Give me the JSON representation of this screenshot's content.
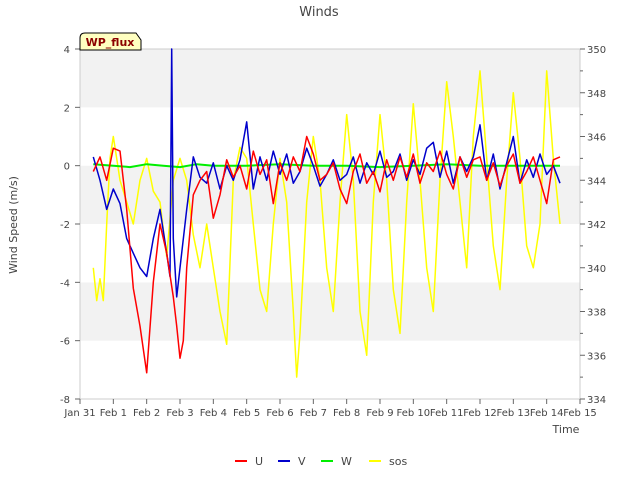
{
  "chart_data": {
    "type": "line",
    "title": "Winds",
    "xlabel": "Time",
    "ylabel": "Wind Speed (m/s)",
    "badge": "WP_flux",
    "x_ticks": [
      "Jan 31",
      "Feb 1",
      "Feb 2",
      "Feb 3",
      "Feb 4",
      "Feb 5",
      "Feb 6",
      "Feb 7",
      "Feb 8",
      "Feb 9",
      "Feb 10",
      "Feb 11",
      "Feb 12",
      "Feb 13",
      "Feb 14",
      "Feb 15"
    ],
    "xlim": [
      0,
      15
    ],
    "ylim": [
      -8,
      4
    ],
    "y_ticks": [
      -8,
      -6,
      -4,
      -2,
      0,
      2,
      4
    ],
    "y2lim": [
      334,
      350
    ],
    "y2_ticks": [
      334,
      336,
      338,
      340,
      342,
      344,
      346,
      348,
      350
    ],
    "grid": "alternating horizontal bands",
    "legend_position": "bottom-center",
    "series": [
      {
        "name": "U",
        "color": "#ff0000",
        "axis": "left",
        "x": [
          0.4,
          0.6,
          0.8,
          1.0,
          1.2,
          1.4,
          1.6,
          1.8,
          2.0,
          2.2,
          2.4,
          2.6,
          2.8,
          2.9,
          3.0,
          3.1,
          3.2,
          3.4,
          3.6,
          3.8,
          4.0,
          4.2,
          4.4,
          4.6,
          4.8,
          5.0,
          5.2,
          5.4,
          5.6,
          5.8,
          6.0,
          6.2,
          6.4,
          6.6,
          6.8,
          7.0,
          7.2,
          7.4,
          7.6,
          7.8,
          8.0,
          8.2,
          8.4,
          8.6,
          8.8,
          9.0,
          9.2,
          9.4,
          9.6,
          9.8,
          10.0,
          10.2,
          10.4,
          10.6,
          10.8,
          11.0,
          11.2,
          11.4,
          11.6,
          11.8,
          12.0,
          12.2,
          12.4,
          12.6,
          12.8,
          13.0,
          13.2,
          13.4,
          13.6,
          13.8,
          14.0,
          14.2,
          14.4
        ],
        "y": [
          -0.2,
          0.3,
          -0.5,
          0.6,
          0.5,
          -1.5,
          -4.2,
          -5.5,
          -7.1,
          -4.0,
          -2.0,
          -3.0,
          -4.5,
          -5.5,
          -6.6,
          -6.0,
          -3.5,
          -1.0,
          -0.5,
          -0.2,
          -1.8,
          -1.0,
          0.2,
          -0.4,
          0.0,
          -0.8,
          0.5,
          -0.3,
          0.2,
          -1.3,
          0.1,
          -0.5,
          0.3,
          -0.2,
          1.0,
          0.4,
          -0.5,
          -0.3,
          0.1,
          -0.8,
          -1.3,
          -0.2,
          0.4,
          -0.6,
          -0.2,
          -0.9,
          0.2,
          -0.5,
          0.3,
          -0.4,
          0.4,
          -0.6,
          0.1,
          -0.2,
          0.5,
          -0.3,
          -0.8,
          0.3,
          -0.4,
          0.2,
          0.3,
          -0.5,
          0.1,
          -0.7,
          0.0,
          0.4,
          -0.6,
          -0.2,
          0.3,
          -0.5,
          -1.3,
          0.2,
          0.3
        ]
      },
      {
        "name": "V",
        "color": "#0000cc",
        "axis": "left",
        "x": [
          0.4,
          0.6,
          0.8,
          1.0,
          1.2,
          1.4,
          1.6,
          1.8,
          2.0,
          2.2,
          2.4,
          2.6,
          2.7,
          2.75,
          2.8,
          2.9,
          3.0,
          3.2,
          3.4,
          3.6,
          3.8,
          4.0,
          4.2,
          4.4,
          4.6,
          4.8,
          5.0,
          5.2,
          5.4,
          5.6,
          5.8,
          6.0,
          6.2,
          6.4,
          6.6,
          6.8,
          7.0,
          7.2,
          7.4,
          7.6,
          7.8,
          8.0,
          8.2,
          8.4,
          8.6,
          8.8,
          9.0,
          9.2,
          9.4,
          9.6,
          9.8,
          10.0,
          10.2,
          10.4,
          10.6,
          10.8,
          11.0,
          11.2,
          11.4,
          11.6,
          11.8,
          12.0,
          12.2,
          12.4,
          12.6,
          12.8,
          13.0,
          13.2,
          13.4,
          13.6,
          13.8,
          14.0,
          14.2,
          14.4
        ],
        "y": [
          0.3,
          -0.5,
          -1.5,
          -0.8,
          -1.3,
          -2.5,
          -3.0,
          -3.5,
          -3.8,
          -2.5,
          -1.5,
          -3.0,
          -3.8,
          4.0,
          -2.5,
          -4.5,
          -3.5,
          -1.5,
          0.3,
          -0.4,
          -0.6,
          0.1,
          -0.8,
          0.0,
          -0.5,
          0.2,
          1.5,
          -0.8,
          0.3,
          -0.5,
          0.5,
          -0.3,
          0.4,
          -0.6,
          -0.2,
          0.6,
          0.0,
          -0.7,
          -0.3,
          0.2,
          -0.5,
          -0.3,
          0.3,
          -0.6,
          0.1,
          -0.3,
          0.5,
          -0.4,
          -0.2,
          0.4,
          -0.5,
          0.2,
          -0.3,
          0.6,
          0.8,
          -0.4,
          0.5,
          -0.6,
          0.3,
          -0.2,
          0.3,
          1.4,
          -0.5,
          0.4,
          -0.8,
          0.1,
          1.0,
          -0.6,
          0.2,
          -0.4,
          0.4,
          -0.3,
          0.0,
          -0.6
        ]
      },
      {
        "name": "W",
        "color": "#00ee00",
        "axis": "left",
        "x": [
          0.4,
          1.0,
          1.5,
          2.0,
          2.5,
          3.0,
          3.5,
          4.0,
          5.0,
          6.0,
          7.0,
          8.0,
          9.0,
          10.0,
          11.0,
          12.0,
          13.0,
          14.0,
          14.4
        ],
        "y": [
          0.05,
          0.0,
          -0.05,
          0.05,
          0.0,
          -0.05,
          0.05,
          0.0,
          0.0,
          0.05,
          0.0,
          0.0,
          -0.05,
          0.0,
          0.05,
          0.0,
          0.0,
          0.0,
          0.0
        ]
      },
      {
        "name": "sos",
        "color": "#ffff00",
        "axis": "right",
        "x": [
          0.4,
          0.5,
          0.6,
          0.7,
          0.8,
          0.9,
          1.0,
          1.1,
          1.2,
          1.4,
          1.6,
          1.8,
          2.0,
          2.2,
          2.4,
          2.6,
          2.8,
          3.0,
          3.2,
          3.4,
          3.6,
          3.8,
          4.0,
          4.2,
          4.4,
          4.6,
          4.8,
          5.0,
          5.2,
          5.4,
          5.6,
          5.8,
          6.0,
          6.2,
          6.4,
          6.5,
          6.6,
          6.8,
          7.0,
          7.2,
          7.4,
          7.6,
          7.8,
          8.0,
          8.2,
          8.4,
          8.6,
          8.8,
          9.0,
          9.2,
          9.4,
          9.6,
          9.8,
          10.0,
          10.2,
          10.4,
          10.6,
          10.8,
          11.0,
          11.2,
          11.4,
          11.6,
          11.8,
          12.0,
          12.2,
          12.4,
          12.6,
          12.8,
          13.0,
          13.2,
          13.4,
          13.6,
          13.8,
          14.0,
          14.2,
          14.4
        ],
        "y": [
          340.0,
          338.5,
          339.5,
          338.5,
          342.0,
          345.0,
          346.0,
          345.0,
          344.0,
          343.0,
          342.0,
          344.0,
          345.0,
          343.5,
          343.0,
          340.5,
          344.0,
          345.0,
          344.0,
          341.5,
          340.0,
          342.0,
          340.0,
          338.0,
          336.5,
          344.0,
          345.5,
          345.0,
          342.0,
          339.0,
          338.0,
          342.0,
          345.0,
          343.0,
          338.0,
          335.0,
          337.0,
          343.0,
          346.0,
          344.0,
          340.0,
          338.0,
          343.0,
          347.0,
          344.0,
          338.0,
          336.0,
          343.0,
          347.0,
          344.0,
          339.0,
          337.0,
          343.0,
          347.5,
          344.0,
          340.0,
          338.0,
          344.0,
          348.5,
          346.0,
          343.0,
          340.0,
          346.0,
          349.0,
          345.0,
          341.0,
          339.0,
          344.0,
          348.0,
          345.0,
          341.0,
          340.0,
          342.0,
          349.0,
          345.0,
          342.0
        ]
      }
    ]
  }
}
